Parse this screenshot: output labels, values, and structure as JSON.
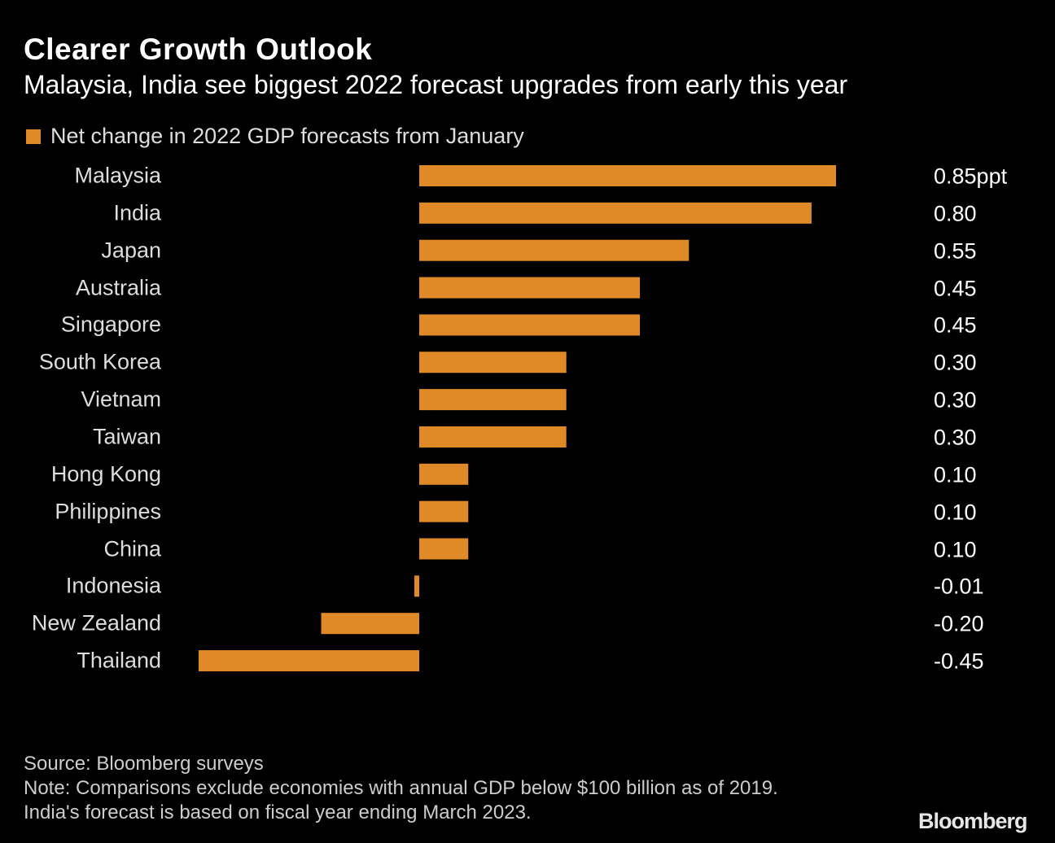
{
  "title": "Clearer Growth Outlook",
  "subtitle": "Malaysia, India see biggest 2022 forecast upgrades from early this year",
  "source": "Source: Bloomberg surveys",
  "note": "Note: Comparisons exclude economies with annual GDP below $100 billion as of 2019. India's forecast is based on fiscal year ending March 2023.",
  "logo": "Bloomberg",
  "colors": {
    "bar": "#df8a26",
    "background": "#000000"
  },
  "chart_data": {
    "type": "bar",
    "orientation": "horizontal",
    "legend": {
      "entries": [
        "Net change in 2022 GDP forecasts from January"
      ],
      "placement": "top-left"
    },
    "categories": [
      "Malaysia",
      "India",
      "Japan",
      "Australia",
      "Singapore",
      "South Korea",
      "Vietnam",
      "Taiwan",
      "Hong Kong",
      "Philippines",
      "China",
      "Indonesia",
      "New Zealand",
      "Thailand"
    ],
    "series": [
      {
        "name": "Net change in 2022 GDP forecasts from January",
        "values": [
          0.85,
          0.8,
          0.55,
          0.45,
          0.45,
          0.3,
          0.3,
          0.3,
          0.1,
          0.1,
          0.1,
          -0.01,
          -0.2,
          -0.45
        ]
      }
    ],
    "data_labels": [
      "0.85ppt",
      "0.80",
      "0.55",
      "0.45",
      "0.45",
      "0.30",
      "0.30",
      "0.30",
      "0.10",
      "0.10",
      "0.10",
      "-0.01",
      "-0.20",
      "-0.45"
    ],
    "unit": "ppt",
    "xlim": [
      -0.45,
      0.85
    ],
    "grid": false
  }
}
